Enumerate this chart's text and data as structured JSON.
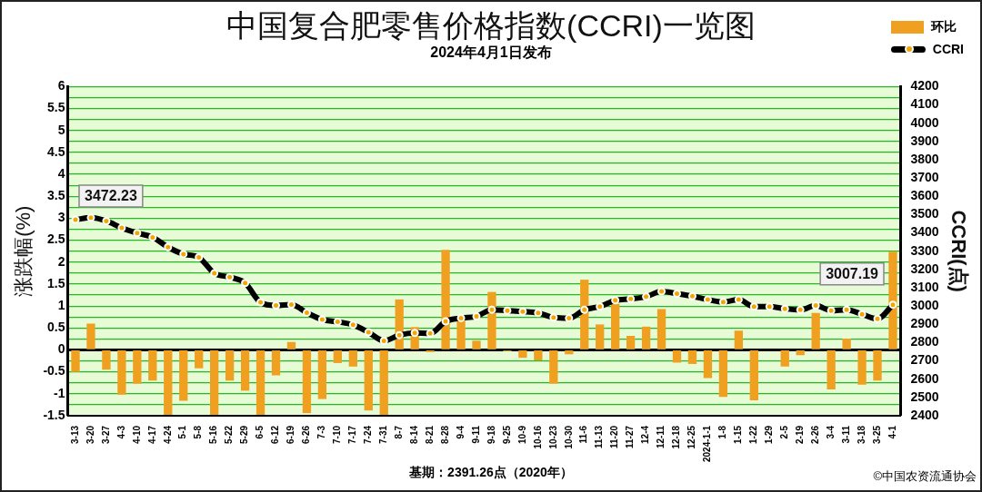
{
  "chart_data": {
    "type": "bar",
    "title": "中国复合肥零售价格指数(CCRI)一览图",
    "subtitle": "2024年4月1日发布",
    "ylabel": "涨跌幅(%)",
    "y2label": "CCRI(点)",
    "categories": [
      "3-13",
      "3-20",
      "3-27",
      "4-3",
      "4-10",
      "4-17",
      "4-24",
      "5-1",
      "5-8",
      "5-16",
      "5-22",
      "5-29",
      "6-5",
      "6-12",
      "6-19",
      "6-26",
      "7-3",
      "7-10",
      "7-17",
      "7-24",
      "7-31",
      "8-7",
      "8-14",
      "8-21",
      "8-28",
      "9-4",
      "9-11",
      "9-18",
      "9-25",
      "10-9",
      "10-16",
      "10-23",
      "10-30",
      "11-6",
      "11-13",
      "11-20",
      "11-27",
      "12-4",
      "12-11",
      "12-18",
      "12-25",
      "2024-1-1",
      "1-8",
      "1-15",
      "1-22",
      "1-29",
      "2-5",
      "2-19",
      "2-26",
      "3-4",
      "3-11",
      "3-18",
      "3-25",
      "4-1"
    ],
    "series": [
      {
        "name": "环比",
        "type": "bar",
        "color": "#f0a020",
        "values": [
          -0.5,
          0.6,
          -0.45,
          -1.02,
          -0.77,
          -0.7,
          -1.48,
          -1.16,
          -0.42,
          -1.48,
          -0.7,
          -0.93,
          -1.48,
          -0.58,
          0.18,
          -1.44,
          -1.12,
          -0.3,
          -0.38,
          -1.38,
          -1.48,
          1.15,
          0.52,
          -0.05,
          2.28,
          0.7,
          0.21,
          1.32,
          -0.03,
          -0.18,
          -0.24,
          -0.77,
          -0.1,
          1.6,
          0.58,
          1.05,
          0.32,
          0.53,
          0.93,
          -0.29,
          -0.32,
          -0.64,
          -1.07,
          0.44,
          -1.15,
          0,
          -0.38,
          -0.12,
          0.84,
          -0.9,
          0.26,
          -0.79,
          -0.7,
          2.24
        ]
      },
      {
        "name": "CCRI",
        "type": "line",
        "axis": "y2",
        "color": "#000000",
        "values": [
          3472.23,
          3483,
          3465,
          3427,
          3399,
          3376,
          3322,
          3284,
          3266,
          3179,
          3158,
          3126,
          3020,
          3003,
          3008,
          2963,
          2926,
          2914,
          2897,
          2856,
          2810,
          2841,
          2853,
          2850,
          2916,
          2934,
          2943,
          2980,
          2975,
          2970,
          2962,
          2937,
          2933,
          2979,
          2997,
          3031,
          3039,
          3051,
          3080,
          3068,
          3054,
          3035,
          3022,
          3035,
          2997,
          2997,
          2985,
          2979,
          3003,
          2975,
          2980,
          2955,
          2930,
          3007.19
        ],
        "value_labels": [
          "3472.23",
          null,
          null,
          null,
          null,
          null,
          null,
          null,
          null,
          null,
          null,
          null,
          null,
          null,
          null,
          null,
          null,
          null,
          null,
          null,
          null,
          null,
          null,
          null,
          null,
          null,
          null,
          null,
          null,
          null,
          null,
          null,
          null,
          null,
          null,
          null,
          null,
          null,
          null,
          null,
          null,
          null,
          null,
          null,
          null,
          null,
          null,
          null,
          null,
          null,
          null,
          null,
          null,
          "3007.19"
        ]
      }
    ],
    "ylim": [
      -1.5,
      6
    ],
    "yticks": [
      -1.5,
      {
        "value": -1.25,
        "label": null
      },
      -1,
      {
        "value": -0.75,
        "label": null
      },
      -0.5,
      {
        "value": -0.25,
        "label": null
      },
      0,
      {
        "value": 0.25,
        "label": null
      },
      0.5,
      {
        "value": 0.75,
        "label": null
      },
      1,
      {
        "value": 1.25,
        "label": null
      },
      1.5,
      {
        "value": 1.75,
        "label": null
      },
      2,
      {
        "value": 2.25,
        "label": null
      },
      2.5,
      {
        "value": 2.75,
        "label": null
      },
      3,
      {
        "value": 3.25,
        "label": null
      },
      3.5,
      {
        "value": 3.75,
        "label": null
      },
      4,
      {
        "value": 4.25,
        "label": null
      },
      4.5,
      {
        "value": 4.75,
        "label": null
      },
      5,
      {
        "value": 5.25,
        "label": null
      },
      5.5,
      {
        "value": 5.75,
        "label": null
      },
      6
    ],
    "y2lim": [
      2400,
      4200
    ],
    "y2ticks": [
      2400,
      2500,
      2600,
      2700,
      2800,
      2900,
      3000,
      3100,
      3200,
      3300,
      3400,
      3500,
      3600,
      3700,
      3800,
      3900,
      4000,
      4100,
      4200
    ],
    "grid": "y",
    "legend": "top right",
    "marker": "circle",
    "annotations": [
      "基期：2391.26点（2020年）",
      "©中国农资流通协会"
    ]
  }
}
